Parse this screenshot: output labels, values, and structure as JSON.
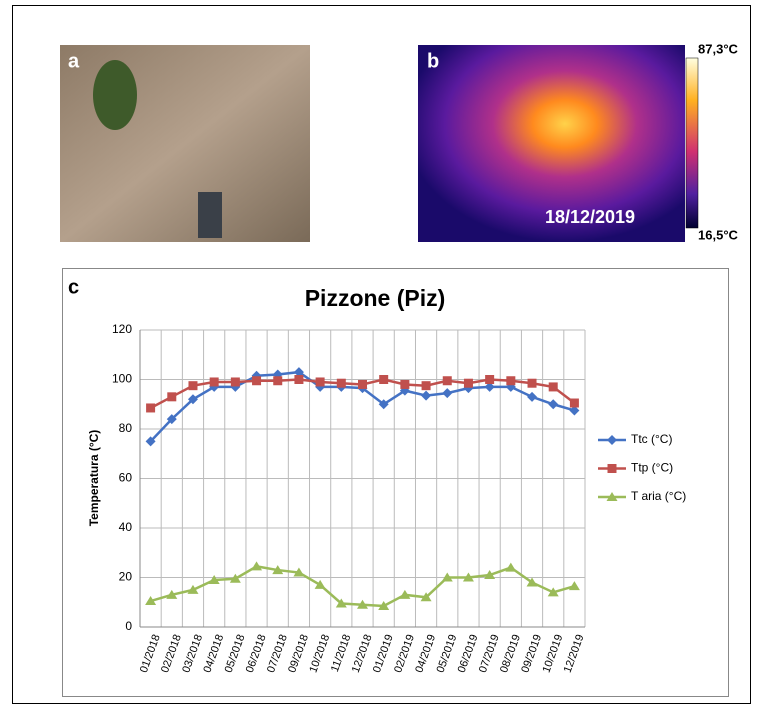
{
  "panels": {
    "a": {
      "label": "a"
    },
    "b": {
      "label": "b",
      "date": "18/12/2019",
      "scale_max": "87,3°C",
      "scale_min": "16,5°C"
    },
    "c": {
      "label": "c"
    }
  },
  "chart_data": {
    "type": "line",
    "title": "Pizzone (Piz)",
    "y_label": "Temperatura (°C)",
    "categories": [
      "01/2018",
      "02/2018",
      "03/2018",
      "04/2018",
      "05/2018",
      "06/2018",
      "07/2018",
      "09/2018",
      "10/2018",
      "11/2018",
      "12/2018",
      "01/2019",
      "02/2019",
      "04/2019",
      "05/2019",
      "06/2019",
      "07/2019",
      "08/2019",
      "09/2019",
      "10/2019",
      "12/2019"
    ],
    "series": [
      {
        "name": "Ttc (°C)",
        "color": "#4472c4",
        "marker": "diamond",
        "values": [
          75,
          84,
          92,
          97,
          97,
          101.5,
          102,
          103,
          97,
          97,
          96.5,
          90,
          95.5,
          93.5,
          94.5,
          96.5,
          97,
          97,
          93,
          90,
          87.5
        ]
      },
      {
        "name": "Ttp (°C)",
        "color": "#c0504d",
        "marker": "square",
        "values": [
          88.5,
          93,
          97.5,
          99,
          99,
          99.5,
          99.5,
          100,
          99,
          98.5,
          98,
          100,
          98,
          97.5,
          99.5,
          98.5,
          100,
          99.5,
          98.5,
          97,
          90.5
        ]
      },
      {
        "name": "T aria (°C)",
        "color": "#9bbb59",
        "marker": "triangle",
        "values": [
          10.5,
          13,
          15,
          19,
          19.5,
          24.5,
          23,
          22,
          17,
          9.5,
          9,
          8.5,
          13,
          12,
          20,
          20,
          21,
          24,
          18,
          14,
          16.5
        ]
      }
    ],
    "ylim": [
      0,
      120
    ],
    "yticks": [
      0,
      20,
      40,
      60,
      80,
      100,
      120
    ],
    "grid": true,
    "legend": "right"
  }
}
